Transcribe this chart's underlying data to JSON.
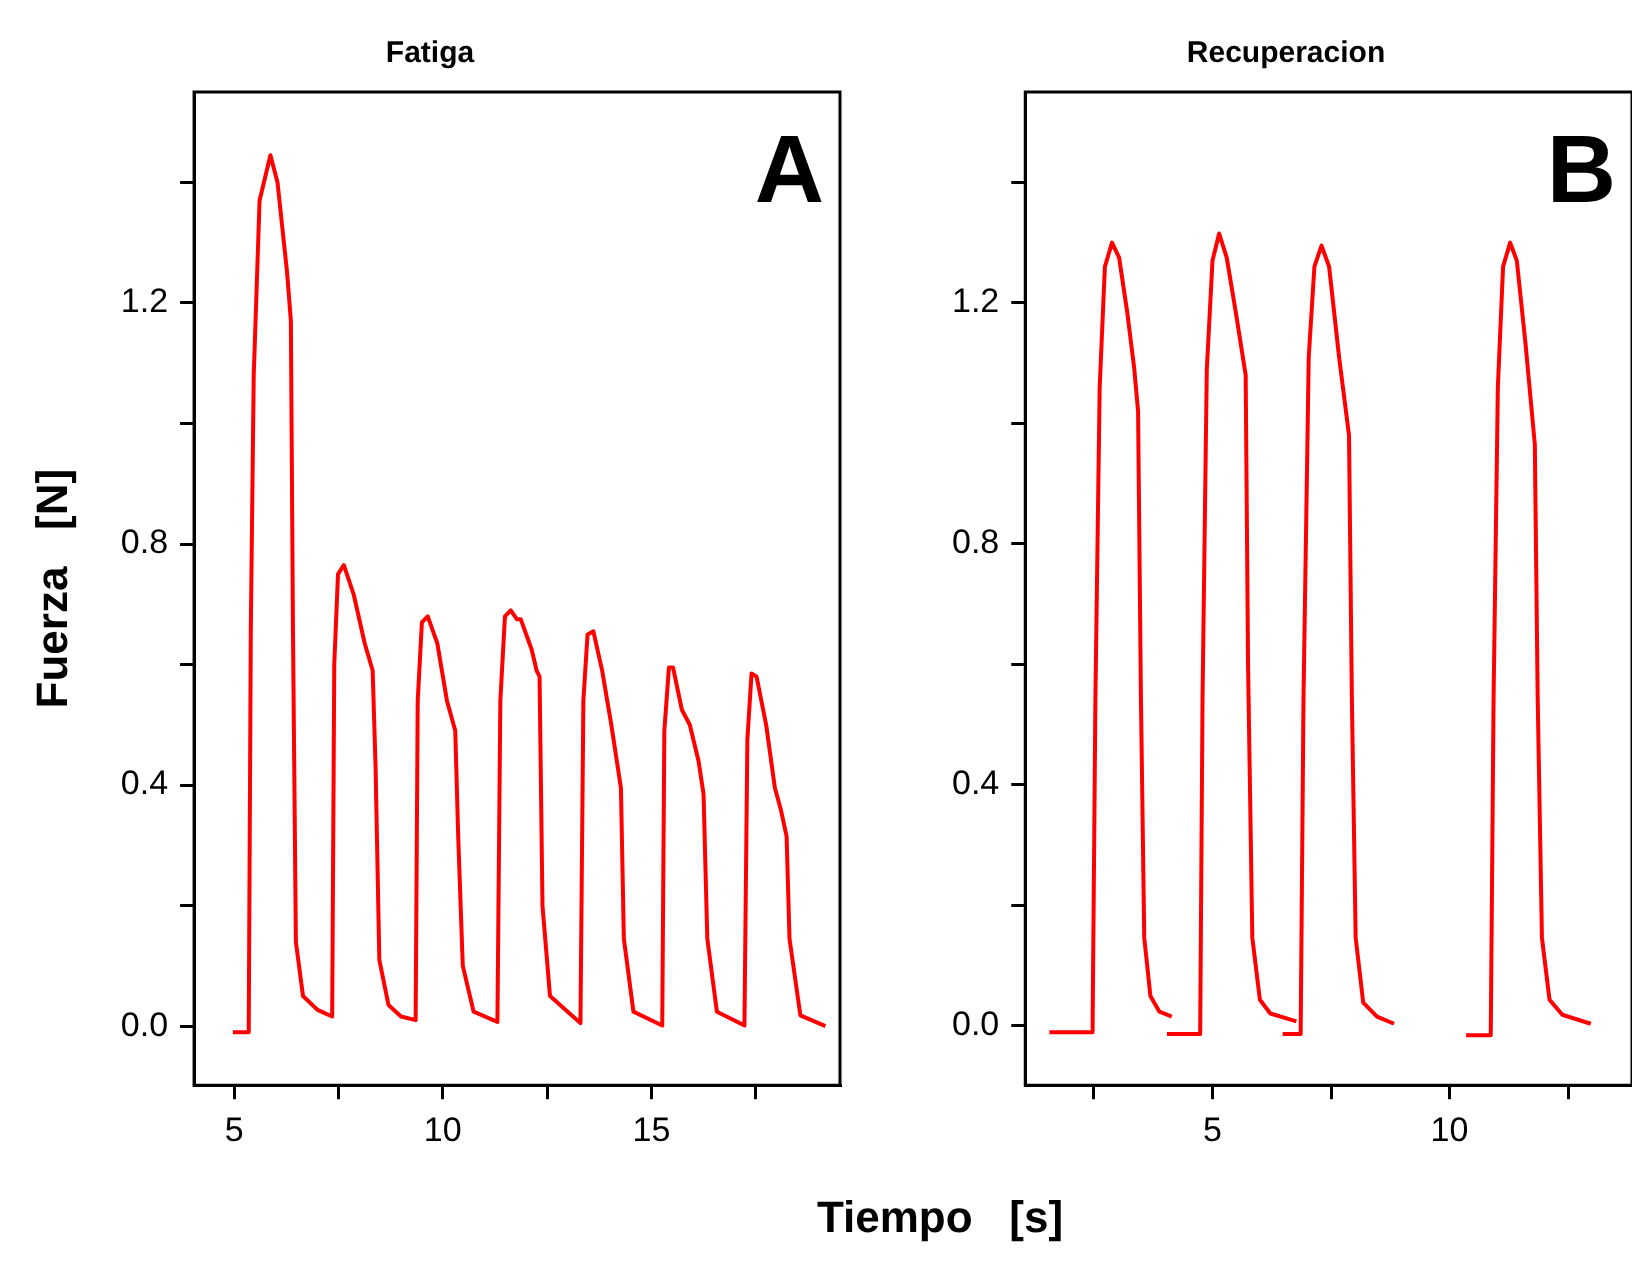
{
  "chart_data": [
    {
      "type": "line",
      "title": "Fatiga",
      "xlabel": "Tiempo   [s]",
      "ylabel": "Fuerza   [N]",
      "annotations": [
        "A"
      ],
      "xlim": [
        4.04,
        19.52
      ],
      "ylim": [
        -0.098,
        1.55
      ],
      "xticks": [
        5,
        {
          "value": 7.5,
          "label": null
        },
        10,
        {
          "value": 12.5,
          "label": null
        },
        15,
        {
          "value": 17.5,
          "label": null
        }
      ],
      "yticks": [
        {
          "value": 0,
          "label": "0.0"
        },
        {
          "value": 0.2,
          "label": null
        },
        0.4,
        {
          "value": 0.6,
          "label": null
        },
        0.8,
        {
          "value": 1.0,
          "label": null
        },
        1.2,
        {
          "value": 1.4,
          "label": null
        }
      ],
      "series": [
        {
          "color": "#ff0000",
          "x": [
            4.97,
            5.35,
            5.4,
            5.47,
            5.61,
            5.87,
            6.04,
            6.27,
            6.36,
            6.41,
            6.48,
            6.65,
            7.0,
            7.35,
            7.4,
            7.49,
            7.63,
            7.87,
            8.13,
            8.32,
            8.39,
            8.48,
            8.7,
            9.0,
            9.35,
            9.4,
            9.5,
            9.64,
            9.87,
            10.1,
            10.3,
            10.37,
            10.48,
            10.74,
            11.31,
            11.38,
            11.49,
            11.63,
            11.78,
            11.87,
            12.13,
            12.25,
            12.32,
            12.39,
            12.57,
            13.3,
            13.37,
            13.47,
            13.61,
            13.82,
            14.04,
            14.27,
            14.34,
            14.57,
            15.26,
            15.31,
            15.42,
            15.52,
            15.73,
            15.92,
            16.13,
            16.25,
            16.34,
            16.57,
            17.23,
            17.3,
            17.4,
            17.52,
            17.75,
            17.96,
            18.1,
            18.24,
            18.31,
            18.57,
            19.17
          ],
          "values": [
            -0.01,
            -0.01,
            0.66,
            1.08,
            1.37,
            1.445,
            1.4,
            1.25,
            1.17,
            0.66,
            0.14,
            0.05,
            0.027,
            0.016,
            0.6,
            0.75,
            0.765,
            0.715,
            0.635,
            0.59,
            0.43,
            0.11,
            0.035,
            0.016,
            0.01,
            0.54,
            0.67,
            0.68,
            0.635,
            0.54,
            0.49,
            0.315,
            0.1,
            0.024,
            0.007,
            0.54,
            0.68,
            0.69,
            0.675,
            0.675,
            0.625,
            0.59,
            0.58,
            0.2,
            0.05,
            0.005,
            0.54,
            0.65,
            0.655,
            0.59,
            0.5,
            0.395,
            0.145,
            0.024,
            0.001,
            0.49,
            0.595,
            0.595,
            0.525,
            0.5,
            0.44,
            0.385,
            0.145,
            0.024,
            0.001,
            0.475,
            0.585,
            0.58,
            0.5,
            0.395,
            0.36,
            0.315,
            0.145,
            0.018,
            0.0
          ]
        }
      ]
    },
    {
      "type": "line",
      "title": "Recuperacion",
      "annotations": [
        "B"
      ],
      "xlim": [
        1.05,
        13.85
      ],
      "ylim": [
        -0.099,
        1.55
      ],
      "xticks": [
        {
          "value": 2.5,
          "label": null
        },
        5,
        {
          "value": 7.5,
          "label": null
        },
        10,
        {
          "value": 12.5,
          "label": null
        }
      ],
      "yticks": [
        {
          "value": 0,
          "label": "0.0"
        },
        {
          "value": 0.2,
          "label": null
        },
        0.4,
        {
          "value": 0.6,
          "label": null
        },
        0.8,
        {
          "value": 1.0,
          "label": null
        },
        1.2,
        {
          "value": 1.4,
          "label": null
        }
      ],
      "series": [
        {
          "color": "#ff0000",
          "x": [
            1.56,
            2.47,
            2.53,
            2.62,
            2.73,
            2.88,
            3.03,
            3.2,
            3.35,
            3.43,
            3.49,
            3.56,
            3.69,
            3.88,
            4.14,
            4.09,
            4.04,
            4.74,
            4.79,
            4.88,
            5.0,
            5.14,
            5.3,
            5.49,
            5.7,
            5.75,
            5.84,
            6.0,
            6.22,
            6.77,
            6.6,
            6.48,
            6.86,
            6.92,
            7.03,
            7.15,
            7.3,
            7.46,
            7.67,
            7.88,
            7.94,
            8.02,
            8.18,
            8.47,
            8.83,
            9.6,
            10.35,
            10.87,
            10.93,
            11.02,
            11.13,
            11.28,
            11.42,
            11.6,
            11.8,
            11.86,
            11.95,
            12.11,
            12.38,
            12.98
          ],
          "values": [
            -0.011,
            -0.011,
            0.545,
            1.06,
            1.26,
            1.3,
            1.275,
            1.185,
            1.09,
            1.02,
            0.545,
            0.146,
            0.049,
            0.023,
            0.015,
            null,
            -0.014,
            -0.014,
            0.545,
            1.09,
            1.27,
            1.315,
            1.275,
            1.185,
            1.08,
            0.6,
            0.146,
            0.043,
            0.02,
            0.007,
            null,
            -0.014,
            -0.014,
            0.545,
            1.11,
            1.26,
            1.295,
            1.26,
            1.11,
            0.98,
            0.545,
            0.146,
            0.038,
            0.015,
            0.003,
            null,
            -0.016,
            -0.016,
            0.545,
            1.06,
            1.26,
            1.3,
            1.27,
            1.135,
            0.965,
            0.545,
            0.146,
            0.043,
            0.018,
            0.003
          ]
        }
      ]
    }
  ]
}
